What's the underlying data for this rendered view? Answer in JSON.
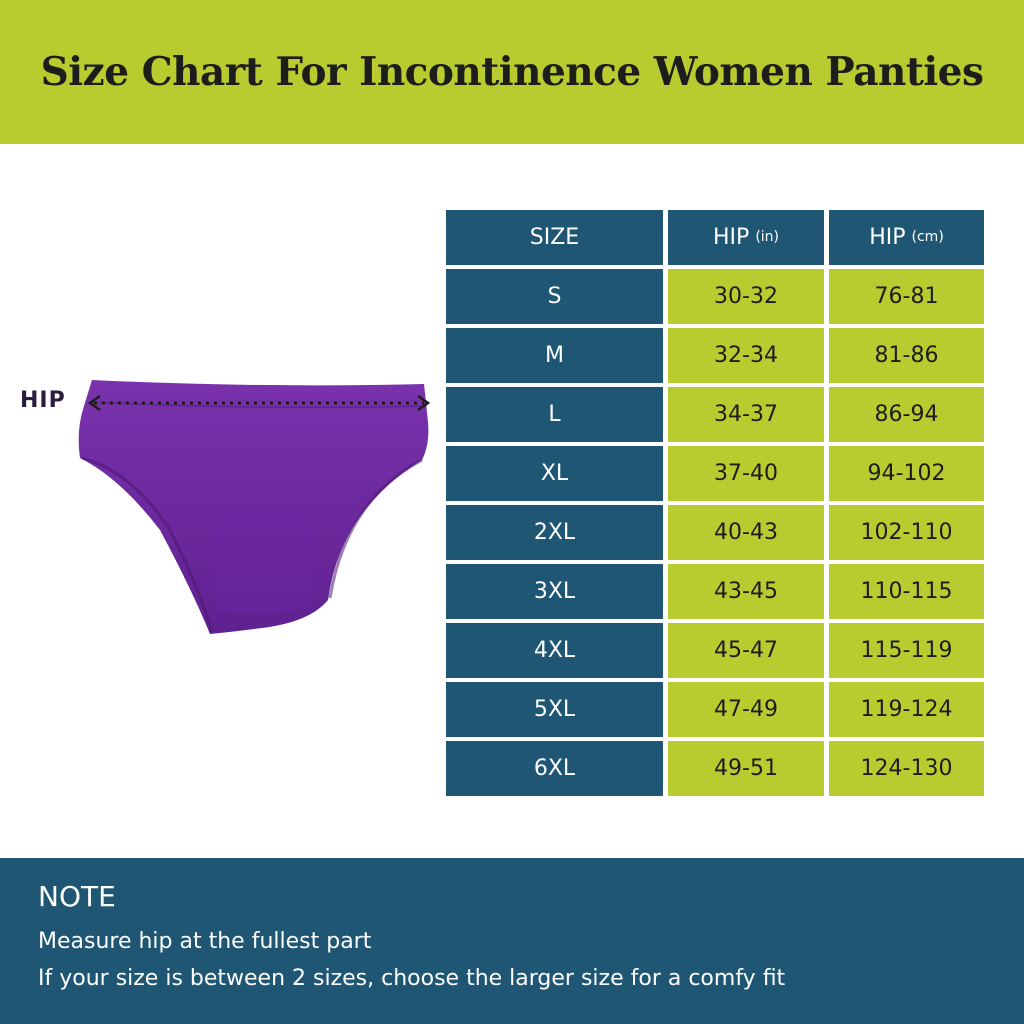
{
  "title": "Size Chart For Incontinence Women Panties",
  "illustration": {
    "hip_label": "HIP",
    "garment_color": "#6f2a9e"
  },
  "colors": {
    "accent_lime": "#b8cc30",
    "accent_blue": "#1e5674"
  },
  "table": {
    "headers": [
      {
        "label": "SIZE",
        "unit": ""
      },
      {
        "label": "HIP",
        "unit": "(in)"
      },
      {
        "label": "HIP",
        "unit": "(cm)"
      }
    ],
    "rows": [
      {
        "size": "S",
        "in": "30-32",
        "cm": "76-81"
      },
      {
        "size": "M",
        "in": "32-34",
        "cm": "81-86"
      },
      {
        "size": "L",
        "in": "34-37",
        "cm": "86-94"
      },
      {
        "size": "XL",
        "in": "37-40",
        "cm": "94-102"
      },
      {
        "size": "2XL",
        "in": "40-43",
        "cm": "102-110"
      },
      {
        "size": "3XL",
        "in": "43-45",
        "cm": "110-115"
      },
      {
        "size": "4XL",
        "in": "45-47",
        "cm": "115-119"
      },
      {
        "size": "5XL",
        "in": "47-49",
        "cm": "119-124"
      },
      {
        "size": "6XL",
        "in": "49-51",
        "cm": "124-130"
      }
    ]
  },
  "note": {
    "title": "NOTE",
    "lines": [
      "Measure hip at the fullest part",
      "If your size is between 2 sizes, choose the larger size for a comfy fit"
    ]
  }
}
